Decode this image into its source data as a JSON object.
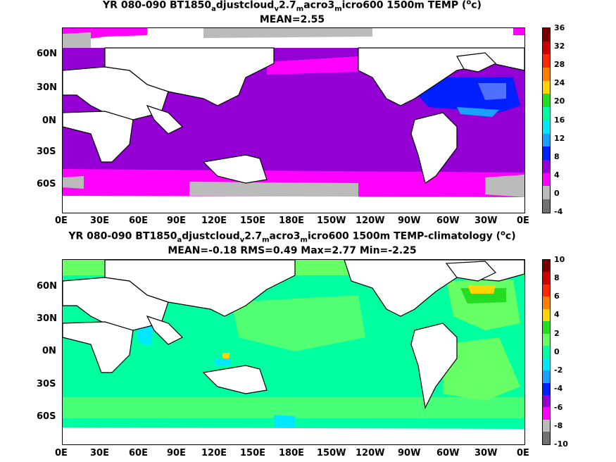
{
  "panel1": {
    "title_pre": "YR 080-090 BT1850",
    "title_s1": "a",
    "title_m1": "djustcloud",
    "title_s2": "v",
    "title_m2": "2.7",
    "title_s3": "m",
    "title_m3": "acro3",
    "title_s4": "m",
    "title_m4": "icro600 1500m TEMP (",
    "title_sup": "o",
    "title_end": "c)",
    "stats": "MEAN=2.55",
    "colorbar": [
      "36",
      "32",
      "28",
      "24",
      "20",
      "16",
      "12",
      "8",
      "4",
      "0",
      "-4"
    ],
    "colors": [
      "#7a0000",
      "#cc0000",
      "#ff2a00",
      "#ff7f00",
      "#ffd400",
      "#22dd22",
      "#00ffa0",
      "#00e8ff",
      "#1aa0ff",
      "#0020ff",
      "#9400d3",
      "#ff00ff",
      "#bbbbbb",
      "#707070"
    ]
  },
  "panel2": {
    "title_pre": "YR 080-090 BT1850",
    "title_s1": "a",
    "title_m1": "djustcloud",
    "title_s2": "v",
    "title_m2": "2.7",
    "title_s3": "m",
    "title_m3": "acro3",
    "title_s4": "m",
    "title_m4": "icro600 1500m TEMP-climatology (",
    "title_sup": "o",
    "title_end": "c)",
    "stats": "MEAN=-0.18   RMS=0.49   Max=2.77   Min=-2.25",
    "colorbar": [
      "10",
      "8",
      "6",
      "4",
      "2",
      "0",
      "-2",
      "-4",
      "-6",
      "-8",
      "-10"
    ],
    "colors": [
      "#7a0000",
      "#cc0000",
      "#ff2a00",
      "#ff7f00",
      "#ffd400",
      "#22dd22",
      "#66ff66",
      "#00ffa0",
      "#00e8ff",
      "#1aa0ff",
      "#0020ff",
      "#9400d3",
      "#ff00ff",
      "#bbbbbb",
      "#707070"
    ]
  },
  "lat_labels": [
    "60N",
    "30N",
    "0N",
    "30S",
    "60S"
  ],
  "lon_labels": [
    "0E",
    "30E",
    "60E",
    "90E",
    "120E",
    "150E",
    "180E",
    "150W",
    "120W",
    "90W",
    "60W",
    "30W",
    "0E"
  ]
}
